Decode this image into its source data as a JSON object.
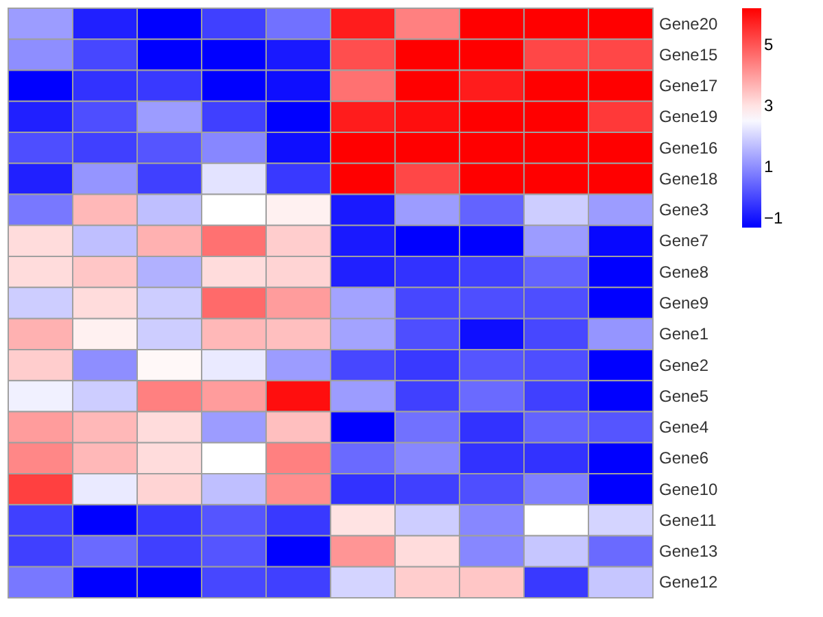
{
  "chart_data": {
    "type": "heatmap",
    "categories": [
      null,
      null,
      null,
      null,
      null,
      null,
      null,
      null,
      null,
      null
    ],
    "y_categories": [
      "Gene20",
      "Gene15",
      "Gene17",
      "Gene19",
      "Gene16",
      "Gene18",
      "Gene3",
      "Gene7",
      "Gene8",
      "Gene9",
      "Gene1",
      "Gene2",
      "Gene5",
      "Gene4",
      "Gene6",
      "Gene10",
      "Gene11",
      "Gene13",
      "Gene12"
    ],
    "cells": [
      [
        1.2,
        -0.55,
        -1,
        -0.1,
        0.6,
        5.8,
        4.4,
        6.2,
        6.2,
        6.2
      ],
      [
        1.0,
        0.0,
        -1,
        -1,
        -0.65,
        5.1,
        6.2,
        6.2,
        5.2,
        5.2
      ],
      [
        -1,
        -0.3,
        -0.2,
        -1,
        -0.8,
        4.6,
        6.2,
        5.8,
        6.2,
        6.2
      ],
      [
        -0.55,
        0.1,
        1.2,
        -0.1,
        -1,
        5.8,
        6.0,
        6.2,
        6.2,
        5.4
      ],
      [
        0.1,
        -0.1,
        0.2,
        0.9,
        -0.8,
        6.2,
        6.2,
        6.2,
        6.2,
        6.2
      ],
      [
        -0.55,
        1.1,
        -0.1,
        2.2,
        -0.2,
        6.2,
        5.2,
        6.2,
        6.2,
        6.2
      ],
      [
        0.7,
        3.6,
        1.7,
        2.6,
        2.8,
        -0.65,
        1.2,
        0.4,
        1.9,
        1.2
      ],
      [
        3.1,
        1.7,
        3.7,
        4.6,
        3.3,
        -0.65,
        -1,
        -1,
        1.2,
        -0.9
      ],
      [
        3.1,
        3.4,
        1.5,
        3.1,
        3.2,
        -0.55,
        -0.3,
        -0.1,
        0.4,
        -1
      ],
      [
        1.9,
        3.1,
        1.9,
        4.7,
        4.0,
        1.3,
        0.0,
        0.1,
        0.1,
        -1
      ],
      [
        3.7,
        2.8,
        1.9,
        3.6,
        3.5,
        1.3,
        0.1,
        -0.8,
        0.0,
        1.1
      ],
      [
        3.3,
        1.0,
        2.7,
        2.3,
        1.2,
        0.0,
        -0.2,
        0.2,
        0.1,
        -1
      ],
      [
        2.4,
        1.9,
        4.4,
        4.0,
        6.0,
        1.2,
        -0.1,
        0.5,
        -0.1,
        -1
      ],
      [
        4.0,
        3.6,
        3.1,
        1.2,
        3.5,
        -1,
        0.6,
        -0.3,
        0.4,
        0.2
      ],
      [
        4.3,
        3.6,
        3.1,
        2.6,
        4.4,
        0.5,
        0.9,
        -0.3,
        -0.3,
        -1
      ],
      [
        5.3,
        2.3,
        3.2,
        1.7,
        4.2,
        -0.3,
        -0.1,
        0.1,
        0.8,
        -1
      ],
      [
        -0.1,
        -1,
        -0.2,
        0.2,
        -0.2,
        3.0,
        1.9,
        0.9,
        2.6,
        2.0
      ],
      [
        -0.1,
        0.5,
        -0.1,
        0.2,
        -1,
        4.1,
        3.1,
        0.9,
        1.8,
        0.5
      ],
      [
        0.7,
        -1,
        -1,
        0.0,
        -0.1,
        2.0,
        3.3,
        3.4,
        -0.2,
        1.8
      ]
    ],
    "clim": [
      -1,
      6.2
    ],
    "cticks": [
      -1,
      1,
      3,
      5
    ]
  }
}
